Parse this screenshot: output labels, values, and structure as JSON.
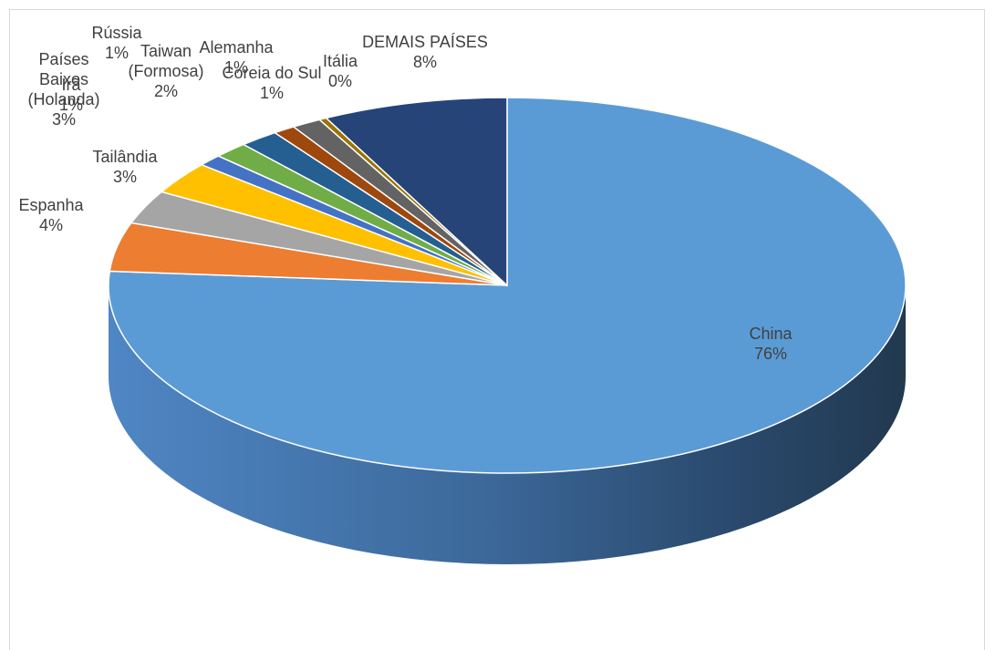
{
  "chart_data": {
    "type": "pie",
    "style": "3d",
    "title": "",
    "slices": [
      {
        "label": [
          "China"
        ],
        "value_label": "76%",
        "value": 76.2,
        "color": "#5b9bd5"
      },
      {
        "label": [
          "Espanha"
        ],
        "value_label": "4%",
        "value": 4.2,
        "color": "#ed7d31"
      },
      {
        "label": [
          "Tailândia"
        ],
        "value_label": "3%",
        "value": 2.9,
        "color": "#a5a5a5"
      },
      {
        "label": [
          "Países",
          "Baixos",
          "(Holanda)"
        ],
        "value_label": "3%",
        "value": 2.8,
        "color": "#ffc000"
      },
      {
        "label": [
          "Irã"
        ],
        "value_label": "1%",
        "value": 1.0,
        "color": "#4472c4"
      },
      {
        "label": [
          "Rússia"
        ],
        "value_label": "1%",
        "value": 1.4,
        "color": "#70ad47"
      },
      {
        "label": [
          "Taiwan",
          "(Formosa)"
        ],
        "value_label": "2%",
        "value": 1.6,
        "color": "#255e91"
      },
      {
        "label": [
          "Alemanha"
        ],
        "value_label": "1%",
        "value": 0.9,
        "color": "#9e480e"
      },
      {
        "label": [
          "Coreia do Sul"
        ],
        "value_label": "1%",
        "value": 1.2,
        "color": "#636363"
      },
      {
        "label": [
          "Itália"
        ],
        "value_label": "0%",
        "value": 0.3,
        "color": "#997300"
      },
      {
        "label": [
          "DEMAIS PAÍSES"
        ],
        "value_label": "8%",
        "value": 7.5,
        "color": "#264478"
      }
    ]
  }
}
